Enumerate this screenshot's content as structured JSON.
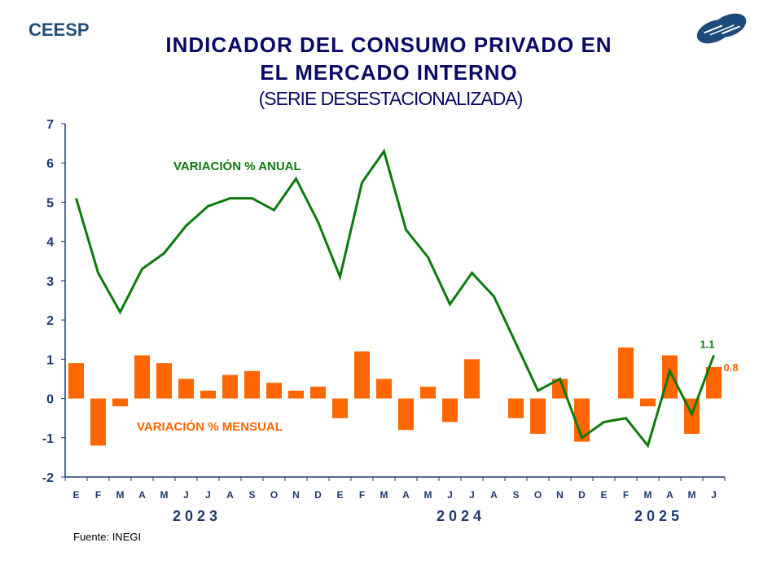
{
  "header": {
    "brand": "CEESP",
    "title_line1": "INDICADOR DEL CONSUMO PRIVADO EN",
    "title_line2": "EL MERCADO INTERNO",
    "subtitle": "(SERIE DESESTACIONALIZADA)",
    "logo_icon": "ceesp-logo-icon"
  },
  "footer": {
    "source": "Fuente: INEGI"
  },
  "colors": {
    "annual": "#0b7a0b",
    "monthly": "#ff6600",
    "axis": "#1f3a6e",
    "title": "#0a0a66"
  },
  "chart_data": {
    "type": "bar+line",
    "title": "INDICADOR DEL CONSUMO PRIVADO EN EL MERCADO INTERNO (SERIE DESESTACIONALIZADA)",
    "xlabel": "",
    "ylabel": "",
    "ylim": [
      -2,
      7
    ],
    "yticks": [
      7,
      6,
      5,
      4,
      3,
      2,
      1,
      0,
      -1,
      -2
    ],
    "grid": false,
    "categories": [
      "E",
      "F",
      "M",
      "A",
      "M",
      "J",
      "J",
      "A",
      "S",
      "O",
      "N",
      "D",
      "E",
      "F",
      "M",
      "A",
      "M",
      "J",
      "J",
      "A",
      "S",
      "O",
      "N",
      "D",
      "E",
      "F",
      "M",
      "A",
      "M",
      "J"
    ],
    "years": [
      {
        "label": "2023",
        "start": 0,
        "end": 11
      },
      {
        "label": "2024",
        "start": 12,
        "end": 23
      },
      {
        "label": "2025",
        "start": 24,
        "end": 29
      }
    ],
    "series": [
      {
        "name": "VARIACIÓN % ANUAL",
        "type": "line",
        "values": [
          5.1,
          3.2,
          2.2,
          3.3,
          3.7,
          4.4,
          4.9,
          5.1,
          5.1,
          4.8,
          5.6,
          4.5,
          3.1,
          5.5,
          6.3,
          4.3,
          3.6,
          2.4,
          3.2,
          2.6,
          1.4,
          0.2,
          0.5,
          -1.0,
          -0.6,
          -0.5,
          -1.2,
          0.7,
          -0.4,
          1.1
        ]
      },
      {
        "name": "VARIACIÓN % MENSUAL",
        "type": "bar",
        "values": [
          0.9,
          -1.2,
          -0.2,
          1.1,
          0.9,
          0.5,
          0.2,
          0.6,
          0.7,
          0.4,
          0.2,
          0.3,
          -0.5,
          1.2,
          0.5,
          -0.8,
          0.3,
          -0.6,
          1.0,
          0.0,
          -0.5,
          -0.9,
          0.5,
          -1.1,
          0.0,
          1.3,
          -0.2,
          1.1,
          -0.9,
          0.8
        ]
      }
    ],
    "annotations": [
      {
        "text": "VARIACIÓN %  ANUAL",
        "series": "annual"
      },
      {
        "text": "VARIACIÓN %  MENSUAL",
        "series": "monthly"
      },
      {
        "text": "1.1",
        "series": "annual",
        "index": 29
      },
      {
        "text": "0.8",
        "series": "monthly",
        "index": 29
      }
    ]
  }
}
